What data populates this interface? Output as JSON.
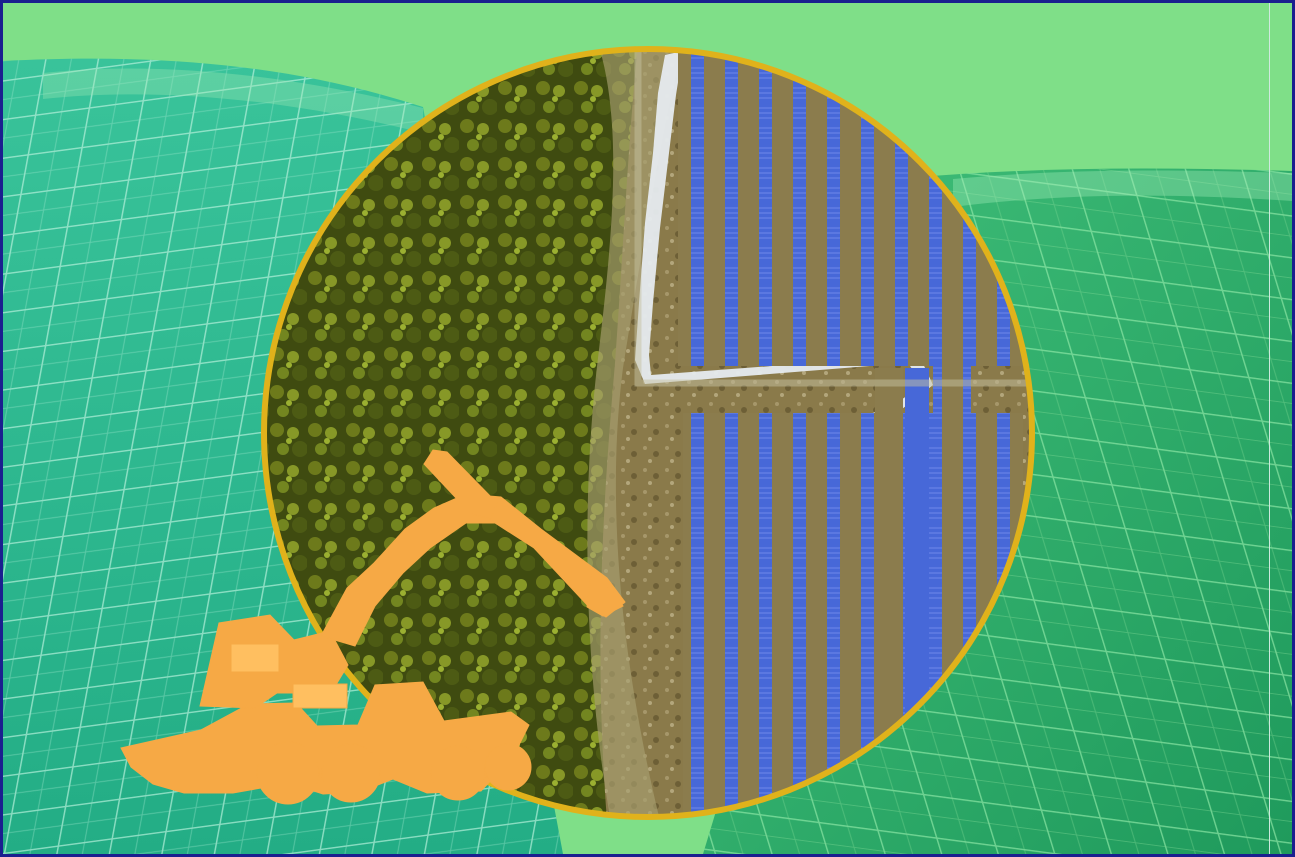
{
  "image": {
    "subject": "solar-farm-vs-forest-collage",
    "colors": {
      "sky": "#7fdf88",
      "field_left": "#2fbf91",
      "field_right": "#2aa768",
      "ring": "#e0b21b",
      "machine": "#f6a945",
      "forest": "#4f5a13",
      "panels": "#3c5fd1",
      "soil": "#8b7c4d",
      "border": "#1a1f8f"
    }
  }
}
